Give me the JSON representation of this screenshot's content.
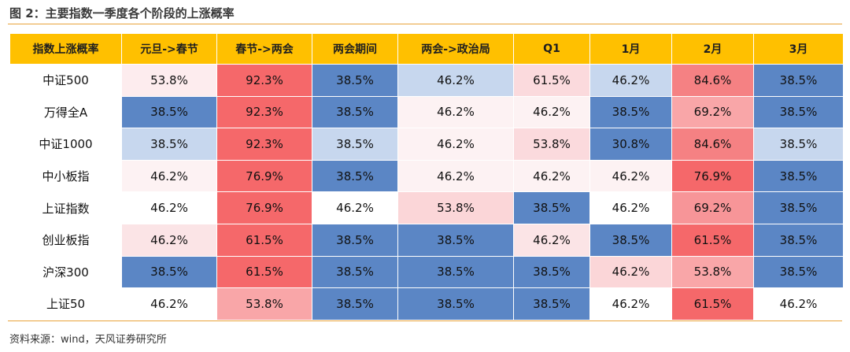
{
  "figure": {
    "title": "图 2：主要指数一季度各个阶段的上涨概率",
    "source": "资料来源：wind，天风证券研究所"
  },
  "chart_data": {
    "type": "heatmap",
    "corner_label": "指数上涨概率",
    "columns": [
      "元旦->春节",
      "春节->两会",
      "两会期间",
      "两会->政治局",
      "Q1",
      "1月",
      "2月",
      "3月"
    ],
    "rows": [
      {
        "name": "中证500",
        "values": [
          "53.8%",
          "92.3%",
          "38.5%",
          "46.2%",
          "61.5%",
          "46.2%",
          "84.6%",
          "38.5%"
        ]
      },
      {
        "name": "万得全A",
        "values": [
          "38.5%",
          "92.3%",
          "38.5%",
          "46.2%",
          "46.2%",
          "38.5%",
          "69.2%",
          "38.5%"
        ]
      },
      {
        "name": "中证1000",
        "values": [
          "38.5%",
          "92.3%",
          "38.5%",
          "46.2%",
          "53.8%",
          "30.8%",
          "84.6%",
          "38.5%"
        ]
      },
      {
        "name": "中小板指",
        "values": [
          "46.2%",
          "76.9%",
          "38.5%",
          "46.2%",
          "46.2%",
          "46.2%",
          "76.9%",
          "38.5%"
        ]
      },
      {
        "name": "上证指数",
        "values": [
          "46.2%",
          "76.9%",
          "46.2%",
          "53.8%",
          "38.5%",
          "46.2%",
          "69.2%",
          "38.5%"
        ]
      },
      {
        "name": "创业板指",
        "values": [
          "46.2%",
          "61.5%",
          "38.5%",
          "38.5%",
          "46.2%",
          "38.5%",
          "61.5%",
          "38.5%"
        ]
      },
      {
        "name": "沪深300",
        "values": [
          "38.5%",
          "61.5%",
          "38.5%",
          "38.5%",
          "38.5%",
          "46.2%",
          "53.8%",
          "38.5%"
        ]
      },
      {
        "name": "上证50",
        "values": [
          "46.2%",
          "53.8%",
          "38.5%",
          "38.5%",
          "38.5%",
          "46.2%",
          "61.5%",
          "46.2%"
        ]
      }
    ],
    "cell_colors": [
      [
        "#fdecee",
        "#f5686a",
        "#5b86c5",
        "#c7d7ee",
        "#fbdadd",
        "#c7d7ee",
        "#f58183",
        "#5b86c5"
      ],
      [
        "#5b86c5",
        "#f5686a",
        "#5b86c5",
        "#fdf2f3",
        "#fdf2f3",
        "#5b86c5",
        "#f9a6a8",
        "#5b86c5"
      ],
      [
        "#c7d7ee",
        "#f5686a",
        "#c7d7ee",
        "#fdf2f3",
        "#fbdadd",
        "#5b86c5",
        "#f58183",
        "#c7d7ee"
      ],
      [
        "#fdf2f3",
        "#f5686a",
        "#5b86c5",
        "#fdf2f3",
        "#fdf2f3",
        "#fdf2f3",
        "#f5686a",
        "#5b86c5"
      ],
      [
        "#ffffff",
        "#f5686a",
        "#ffffff",
        "#fbd6d8",
        "#5b86c5",
        "#ffffff",
        "#f79598",
        "#5b86c5"
      ],
      [
        "#fbe4e6",
        "#f5686a",
        "#5b86c5",
        "#5b86c5",
        "#fbe4e6",
        "#5b86c5",
        "#f5686a",
        "#5b86c5"
      ],
      [
        "#5b86c5",
        "#f5686a",
        "#5b86c5",
        "#5b86c5",
        "#5b86c5",
        "#fbd6d8",
        "#f9a6a8",
        "#5b86c5"
      ],
      [
        "#ffffff",
        "#f9a6a8",
        "#5b86c5",
        "#5b86c5",
        "#5b86c5",
        "#ffffff",
        "#f5686a",
        "#ffffff"
      ]
    ],
    "header_color": "#ffc000",
    "legend": "none",
    "grid": true
  }
}
